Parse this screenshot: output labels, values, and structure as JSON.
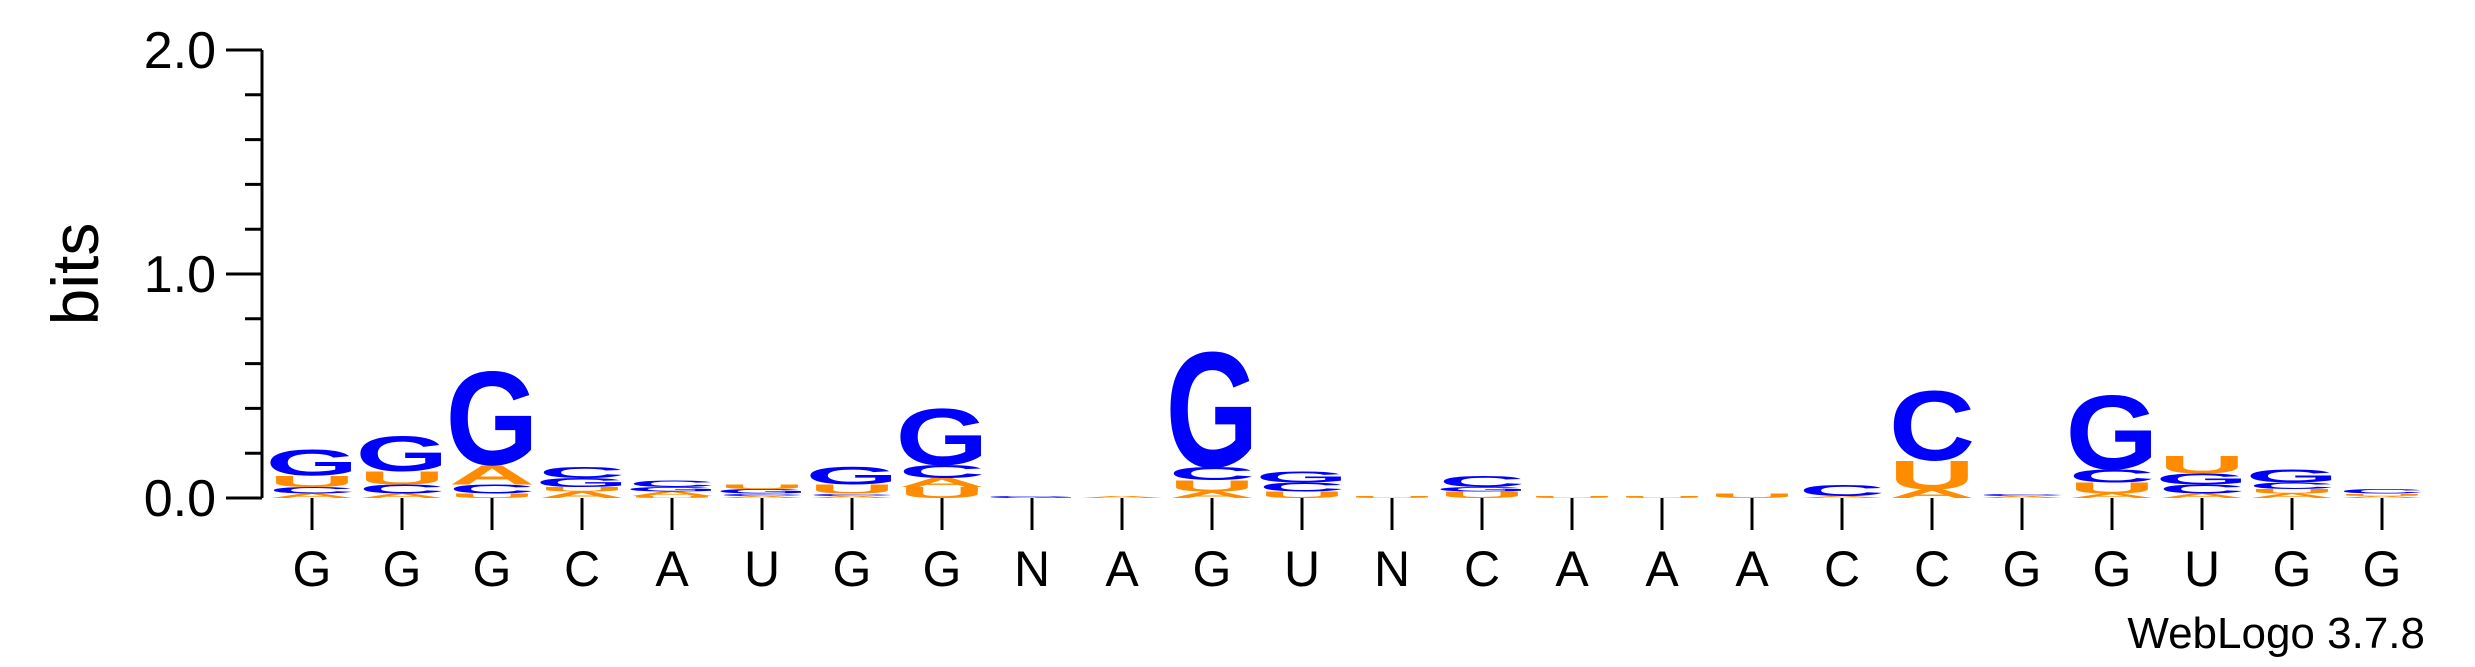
{
  "chart_data": {
    "type": "sequence-logo",
    "ylabel": "bits",
    "ylim": [
      0,
      2.0
    ],
    "yticks": [
      "0.0",
      "1.0",
      "2.0"
    ],
    "positions": [
      "G",
      "G",
      "G",
      "C",
      "A",
      "U",
      "G",
      "G",
      "N",
      "A",
      "G",
      "U",
      "N",
      "C",
      "A",
      "A",
      "A",
      "C",
      "C",
      "G",
      "G",
      "U",
      "G",
      "G"
    ],
    "colors": {
      "G": "#0000ff",
      "C": "#0000ff",
      "A": "#ff8c00",
      "U": "#ff8c00"
    },
    "stacks": [
      [
        {
          "l": "A",
          "h": 0.02
        },
        {
          "l": "C",
          "h": 0.03
        },
        {
          "l": "U",
          "h": 0.05
        },
        {
          "l": "G",
          "h": 0.12
        }
      ],
      [
        {
          "l": "A",
          "h": 0.02
        },
        {
          "l": "C",
          "h": 0.04
        },
        {
          "l": "U",
          "h": 0.06
        },
        {
          "l": "G",
          "h": 0.16
        }
      ],
      [
        {
          "l": "U",
          "h": 0.02
        },
        {
          "l": "C",
          "h": 0.04
        },
        {
          "l": "A",
          "h": 0.09
        },
        {
          "l": "G",
          "h": 0.43
        }
      ],
      [
        {
          "l": "A",
          "h": 0.03
        },
        {
          "l": "U",
          "h": 0.02
        },
        {
          "l": "G",
          "h": 0.04
        },
        {
          "l": "C",
          "h": 0.05
        }
      ],
      [
        {
          "l": "U",
          "h": 0.01
        },
        {
          "l": "A",
          "h": 0.02
        },
        {
          "l": "G",
          "h": 0.02
        },
        {
          "l": "C",
          "h": 0.03
        }
      ],
      [
        {
          "l": "A",
          "h": 0.01
        },
        {
          "l": "C",
          "h": 0.01
        },
        {
          "l": "G",
          "h": 0.02
        },
        {
          "l": "U",
          "h": 0.02
        }
      ],
      [
        {
          "l": "A",
          "h": 0.01
        },
        {
          "l": "C",
          "h": 0.01
        },
        {
          "l": "U",
          "h": 0.04
        },
        {
          "l": "G",
          "h": 0.08
        }
      ],
      [
        {
          "l": "U",
          "h": 0.05
        },
        {
          "l": "A",
          "h": 0.04
        },
        {
          "l": "C",
          "h": 0.06
        },
        {
          "l": "G",
          "h": 0.26
        }
      ],
      [
        {
          "l": "G",
          "h": 0.01
        }
      ],
      [
        {
          "l": "A",
          "h": 0.01
        }
      ],
      [
        {
          "l": "A",
          "h": 0.03
        },
        {
          "l": "U",
          "h": 0.05
        },
        {
          "l": "C",
          "h": 0.06
        },
        {
          "l": "G",
          "h": 0.53
        }
      ],
      [
        {
          "l": "U",
          "h": 0.03
        },
        {
          "l": "C",
          "h": 0.04
        },
        {
          "l": "G",
          "h": 0.05
        }
      ],
      [
        {
          "l": "U",
          "h": 0.01
        }
      ],
      [
        {
          "l": "U",
          "h": 0.03
        },
        {
          "l": "G",
          "h": 0.02
        },
        {
          "l": "C",
          "h": 0.05
        }
      ],
      [
        {
          "l": "U",
          "h": 0.01
        }
      ],
      [
        {
          "l": "U",
          "h": 0.01
        }
      ],
      [
        {
          "l": "U",
          "h": 0.02
        }
      ],
      [
        {
          "l": "A",
          "h": 0.01
        },
        {
          "l": "C",
          "h": 0.05
        }
      ],
      [
        {
          "l": "A",
          "h": 0.04
        },
        {
          "l": "U",
          "h": 0.13
        },
        {
          "l": "C",
          "h": 0.32
        }
      ],
      [
        {
          "l": "A",
          "h": 0.01
        },
        {
          "l": "C",
          "h": 0.01
        }
      ],
      [
        {
          "l": "A",
          "h": 0.02
        },
        {
          "l": "U",
          "h": 0.05
        },
        {
          "l": "C",
          "h": 0.06
        },
        {
          "l": "G",
          "h": 0.34
        }
      ],
      [
        {
          "l": "A",
          "h": 0.02
        },
        {
          "l": "C",
          "h": 0.04
        },
        {
          "l": "G",
          "h": 0.05
        },
        {
          "l": "U",
          "h": 0.08
        }
      ],
      [
        {
          "l": "A",
          "h": 0.02
        },
        {
          "l": "U",
          "h": 0.02
        },
        {
          "l": "C",
          "h": 0.03
        },
        {
          "l": "G",
          "h": 0.06
        }
      ],
      [
        {
          "l": "A",
          "h": 0.01
        },
        {
          "l": "U",
          "h": 0.01
        },
        {
          "l": "C",
          "h": 0.02
        }
      ]
    ]
  },
  "credit": "WebLogo 3.7.8"
}
